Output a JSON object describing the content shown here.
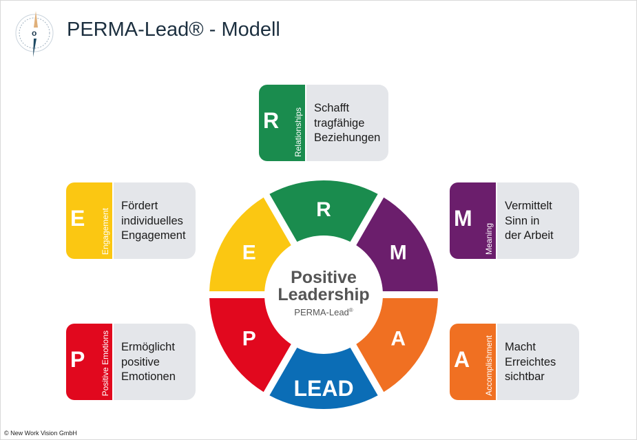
{
  "title": "PERMA-Lead® - Modell",
  "logo": {
    "icon": "compass-icon"
  },
  "center": {
    "line1": "Positive",
    "line2": "Leadership",
    "sub": "PERMA-Lead",
    "sub_mark": "®"
  },
  "ring": [
    {
      "key": "R",
      "label": "R",
      "color": "#1a8c4e"
    },
    {
      "key": "M",
      "label": "M",
      "color": "#6b1e6c"
    },
    {
      "key": "A",
      "label": "A",
      "color": "#f07022"
    },
    {
      "key": "LEAD",
      "label": "LEAD",
      "color": "#0b6db6"
    },
    {
      "key": "P",
      "label": "P",
      "color": "#e1081e"
    },
    {
      "key": "E",
      "label": "E",
      "color": "#fbc712"
    }
  ],
  "cards": [
    {
      "key": "R",
      "letter": "R",
      "name": "Relationships",
      "color": "#1a8c4e",
      "lines": [
        "Schafft",
        "tragfähige",
        "Beziehungen"
      ]
    },
    {
      "key": "E",
      "letter": "E",
      "name": "Engagement",
      "color": "#fbc712",
      "lines": [
        "Fördert",
        "individuelles",
        "Engagement"
      ]
    },
    {
      "key": "M",
      "letter": "M",
      "name": "Meaning",
      "color": "#6b1e6c",
      "lines": [
        "Vermittelt",
        "Sinn in",
        "der Arbeit"
      ]
    },
    {
      "key": "P",
      "letter": "P",
      "name": "Positive Emotions",
      "color": "#e1081e",
      "lines": [
        "Ermöglicht",
        "positive",
        "Emotionen"
      ]
    },
    {
      "key": "A",
      "letter": "A",
      "name": "Accomplishment",
      "color": "#f07022",
      "lines": [
        "Macht",
        "Erreichtes",
        "sichtbar"
      ]
    }
  ],
  "footer": {
    "copyright": "© New Work Vision GmbH"
  }
}
